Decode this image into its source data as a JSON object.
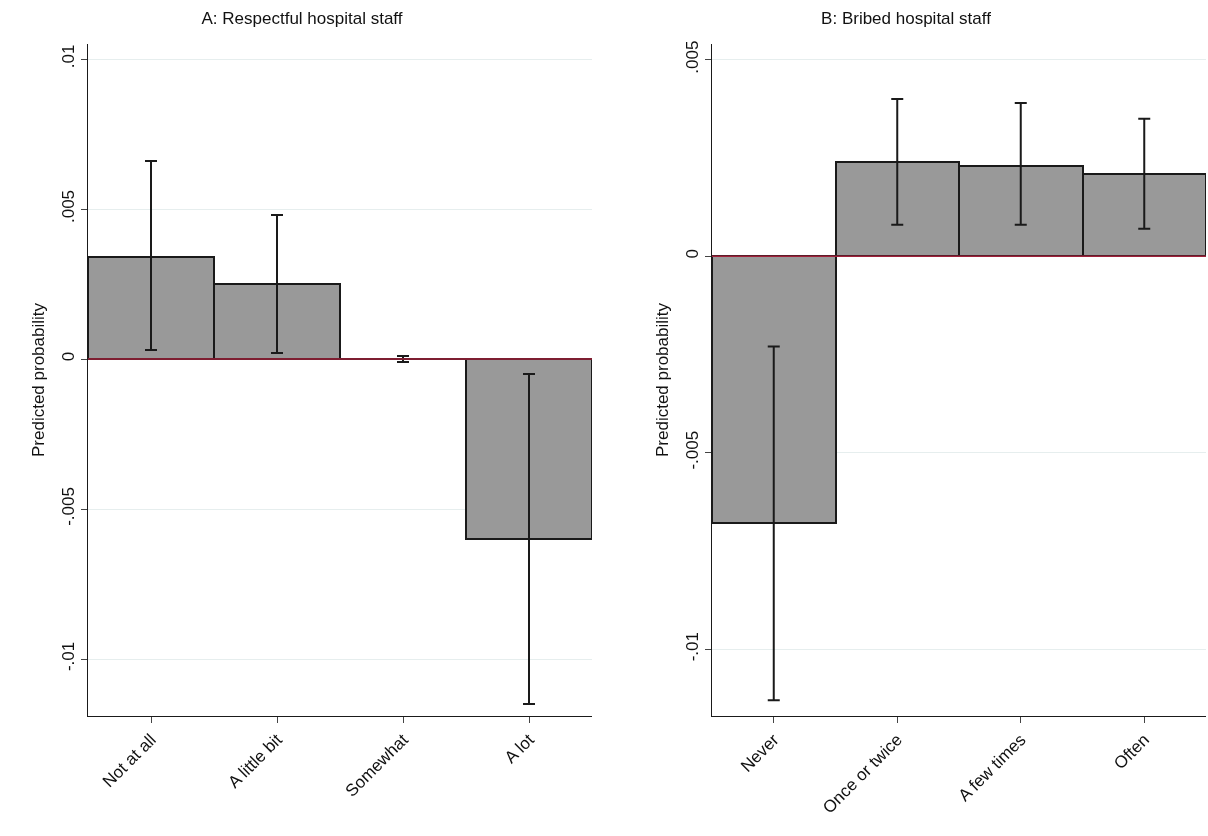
{
  "chart_data": [
    {
      "type": "bar",
      "title": "A: Respectful hospital staff",
      "ylabel": "Predicted probability",
      "categories": [
        "Not at all",
        "A little bit",
        "Somewhat",
        "A lot"
      ],
      "values": [
        0.0034,
        0.0025,
        0,
        -0.006
      ],
      "errors": [
        [
          0.0003,
          0.0066
        ],
        [
          0.0002,
          0.0048
        ],
        [
          -0.0001,
          0.0001
        ],
        [
          -0.0115,
          -0.0005
        ]
      ],
      "colors": [
        "#999999",
        "#999999",
        "#1a1a1a",
        "#999999"
      ],
      "ylim": [
        -0.0119,
        0.0105
      ],
      "yticks": [
        {
          "value": 0.01,
          "label": ".01"
        },
        {
          "value": 0.005,
          "label": ".005"
        },
        0,
        {
          "value": -0.005,
          "label": "-.005"
        },
        {
          "value": -0.01,
          "label": "-.01"
        }
      ],
      "ref_lines": [
        {
          "axis": "y",
          "value": 0,
          "color": "#a0203a"
        }
      ],
      "grid": "y"
    },
    {
      "type": "bar",
      "title": "B: Bribed hospital staff",
      "ylabel": "Predicted probability",
      "categories": [
        "Never",
        "Once or twice",
        "A few times",
        "Often"
      ],
      "values": [
        -0.0068,
        0.0024,
        0.0023,
        0.0021
      ],
      "errors": [
        [
          -0.0113,
          -0.0023
        ],
        [
          0.0008,
          0.004
        ],
        [
          0.0008,
          0.0039
        ],
        [
          0.0007,
          0.0035
        ]
      ],
      "color": "#999999",
      "ylim": [
        -0.0117,
        0.0054
      ],
      "yticks": [
        {
          "value": 0.005,
          "label": ".005"
        },
        0,
        {
          "value": -0.005,
          "label": "-.005"
        },
        {
          "value": -0.01,
          "label": "-.01"
        }
      ],
      "ref_lines": [
        {
          "axis": "y",
          "value": 0,
          "color": "#a0203a"
        }
      ],
      "grid": "y"
    }
  ]
}
